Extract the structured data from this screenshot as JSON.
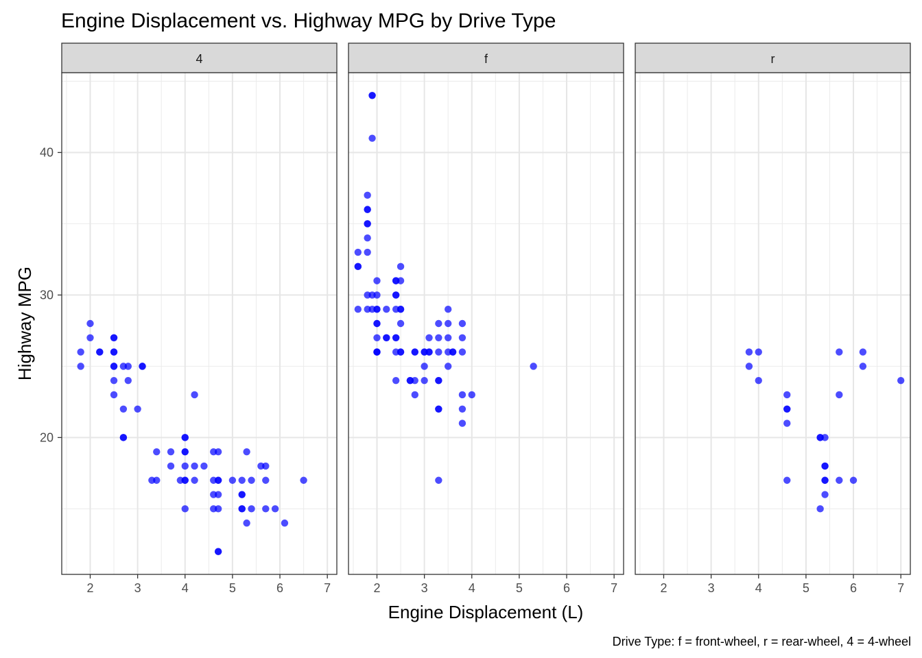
{
  "chart_data": {
    "type": "scatter",
    "title": "Engine Displacement vs. Highway MPG by Drive Type",
    "xlabel": "Engine Displacement (L)",
    "ylabel": "Highway MPG",
    "caption": "Drive Type: f = front-wheel, r = rear-wheel, 4 = 4-wheel",
    "xlim": [
      1.4,
      7.2
    ],
    "ylim": [
      10.4,
      45.6
    ],
    "x_ticks": [
      2,
      3,
      4,
      5,
      6,
      7
    ],
    "y_ticks": [
      20,
      30,
      40
    ],
    "grid": true,
    "point_color": "#0000ff",
    "point_opacity": 0.7,
    "panels": [
      {
        "label": "4",
        "points": [
          [
            1.8,
            26
          ],
          [
            1.8,
            25
          ],
          [
            2.0,
            28
          ],
          [
            2.0,
            27
          ],
          [
            2.2,
            26
          ],
          [
            2.2,
            26
          ],
          [
            2.5,
            27
          ],
          [
            2.5,
            27
          ],
          [
            2.5,
            26
          ],
          [
            2.5,
            26
          ],
          [
            2.5,
            25
          ],
          [
            2.5,
            25
          ],
          [
            2.5,
            24
          ],
          [
            2.5,
            23
          ],
          [
            2.7,
            25
          ],
          [
            2.8,
            25
          ],
          [
            2.8,
            24
          ],
          [
            2.7,
            22
          ],
          [
            3.0,
            22
          ],
          [
            3.1,
            25
          ],
          [
            3.1,
            25
          ],
          [
            2.7,
            20
          ],
          [
            2.7,
            20
          ],
          [
            3.3,
            17
          ],
          [
            3.4,
            19
          ],
          [
            3.4,
            17
          ],
          [
            3.7,
            19
          ],
          [
            3.7,
            18
          ],
          [
            3.9,
            17
          ],
          [
            4.0,
            20
          ],
          [
            4.0,
            20
          ],
          [
            4.0,
            19
          ],
          [
            4.0,
            19
          ],
          [
            4.0,
            18
          ],
          [
            4.0,
            17
          ],
          [
            4.0,
            17
          ],
          [
            4.0,
            15
          ],
          [
            4.2,
            23
          ],
          [
            4.2,
            18
          ],
          [
            4.2,
            17
          ],
          [
            4.4,
            18
          ],
          [
            4.6,
            19
          ],
          [
            4.7,
            19
          ],
          [
            4.6,
            17
          ],
          [
            4.7,
            17
          ],
          [
            4.7,
            17
          ],
          [
            4.6,
            16
          ],
          [
            4.7,
            16
          ],
          [
            4.6,
            15
          ],
          [
            4.7,
            15
          ],
          [
            4.7,
            12
          ],
          [
            4.7,
            12
          ],
          [
            5.0,
            17
          ],
          [
            5.2,
            17
          ],
          [
            5.2,
            16
          ],
          [
            5.2,
            16
          ],
          [
            5.2,
            15
          ],
          [
            5.2,
            15
          ],
          [
            5.3,
            19
          ],
          [
            5.3,
            14
          ],
          [
            5.4,
            17
          ],
          [
            5.4,
            15
          ],
          [
            5.6,
            18
          ],
          [
            5.7,
            18
          ],
          [
            5.7,
            17
          ],
          [
            5.7,
            15
          ],
          [
            5.9,
            15
          ],
          [
            6.1,
            14
          ],
          [
            6.5,
            17
          ]
        ]
      },
      {
        "label": "f",
        "points": [
          [
            1.9,
            44
          ],
          [
            1.9,
            44
          ],
          [
            1.9,
            41
          ],
          [
            1.8,
            37
          ],
          [
            1.8,
            36
          ],
          [
            1.8,
            36
          ],
          [
            1.8,
            35
          ],
          [
            1.8,
            35
          ],
          [
            1.8,
            34
          ],
          [
            1.8,
            33
          ],
          [
            1.8,
            30
          ],
          [
            1.8,
            29
          ],
          [
            1.6,
            33
          ],
          [
            1.6,
            32
          ],
          [
            1.6,
            32
          ],
          [
            1.6,
            29
          ],
          [
            1.9,
            30
          ],
          [
            1.9,
            29
          ],
          [
            2.0,
            31
          ],
          [
            2.0,
            30
          ],
          [
            2.0,
            29
          ],
          [
            2.0,
            29
          ],
          [
            2.0,
            28
          ],
          [
            2.0,
            28
          ],
          [
            2.0,
            27
          ],
          [
            2.0,
            26
          ],
          [
            2.0,
            26
          ],
          [
            2.0,
            26
          ],
          [
            2.2,
            29
          ],
          [
            2.2,
            27
          ],
          [
            2.2,
            27
          ],
          [
            2.4,
            31
          ],
          [
            2.4,
            31
          ],
          [
            2.4,
            30
          ],
          [
            2.4,
            30
          ],
          [
            2.4,
            29
          ],
          [
            2.4,
            27
          ],
          [
            2.4,
            27
          ],
          [
            2.4,
            26
          ],
          [
            2.4,
            24
          ],
          [
            2.5,
            32
          ],
          [
            2.5,
            31
          ],
          [
            2.5,
            29
          ],
          [
            2.5,
            29
          ],
          [
            2.5,
            28
          ],
          [
            2.5,
            26
          ],
          [
            2.5,
            26
          ],
          [
            2.7,
            24
          ],
          [
            2.7,
            24
          ],
          [
            2.8,
            26
          ],
          [
            2.8,
            26
          ],
          [
            2.8,
            24
          ],
          [
            2.8,
            23
          ],
          [
            3.0,
            26
          ],
          [
            3.0,
            26
          ],
          [
            3.0,
            25
          ],
          [
            3.0,
            24
          ],
          [
            3.1,
            27
          ],
          [
            3.1,
            26
          ],
          [
            3.1,
            26
          ],
          [
            3.3,
            28
          ],
          [
            3.3,
            27
          ],
          [
            3.3,
            26
          ],
          [
            3.3,
            24
          ],
          [
            3.3,
            24
          ],
          [
            3.3,
            22
          ],
          [
            3.3,
            22
          ],
          [
            3.3,
            17
          ],
          [
            3.5,
            29
          ],
          [
            3.5,
            28
          ],
          [
            3.5,
            27
          ],
          [
            3.5,
            26
          ],
          [
            3.5,
            25
          ],
          [
            3.6,
            26
          ],
          [
            3.6,
            26
          ],
          [
            3.8,
            28
          ],
          [
            3.8,
            27
          ],
          [
            3.8,
            26
          ],
          [
            3.8,
            23
          ],
          [
            3.8,
            22
          ],
          [
            3.8,
            21
          ],
          [
            4.0,
            23
          ],
          [
            5.3,
            25
          ]
        ]
      },
      {
        "label": "r",
        "points": [
          [
            3.8,
            26
          ],
          [
            3.8,
            25
          ],
          [
            4.0,
            26
          ],
          [
            4.0,
            24
          ],
          [
            4.6,
            23
          ],
          [
            4.6,
            22
          ],
          [
            4.6,
            22
          ],
          [
            4.6,
            21
          ],
          [
            4.6,
            17
          ],
          [
            5.3,
            20
          ],
          [
            5.3,
            20
          ],
          [
            5.4,
            20
          ],
          [
            5.3,
            15
          ],
          [
            5.4,
            18
          ],
          [
            5.4,
            18
          ],
          [
            5.4,
            17
          ],
          [
            5.4,
            17
          ],
          [
            5.4,
            16
          ],
          [
            5.7,
            26
          ],
          [
            5.7,
            23
          ],
          [
            5.7,
            17
          ],
          [
            6.0,
            17
          ],
          [
            6.2,
            26
          ],
          [
            6.2,
            25
          ],
          [
            7.0,
            24
          ]
        ]
      }
    ]
  }
}
